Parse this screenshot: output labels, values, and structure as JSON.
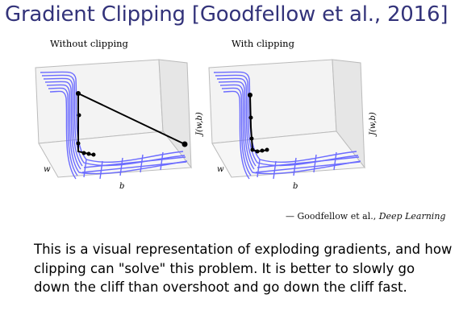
{
  "slide": {
    "title": "Gradient Clipping [Goodfellow et al., 2016]"
  },
  "figure": {
    "left_label": "Without clipping",
    "right_label": "With clipping",
    "axis_w": "w",
    "axis_b": "b",
    "axis_j": "J(w,b)",
    "line_color": "#6b6bff",
    "path_color": "#000000"
  },
  "caption": {
    "prefix": "— Goodfellow et al., ",
    "title": "Deep Learning"
  },
  "body": {
    "text": "This is a visual representation of exploding gradients, and how clipping can \"solve\" this problem. It is better to slowly go down the cliff than overshoot and go down the cliff fast."
  }
}
